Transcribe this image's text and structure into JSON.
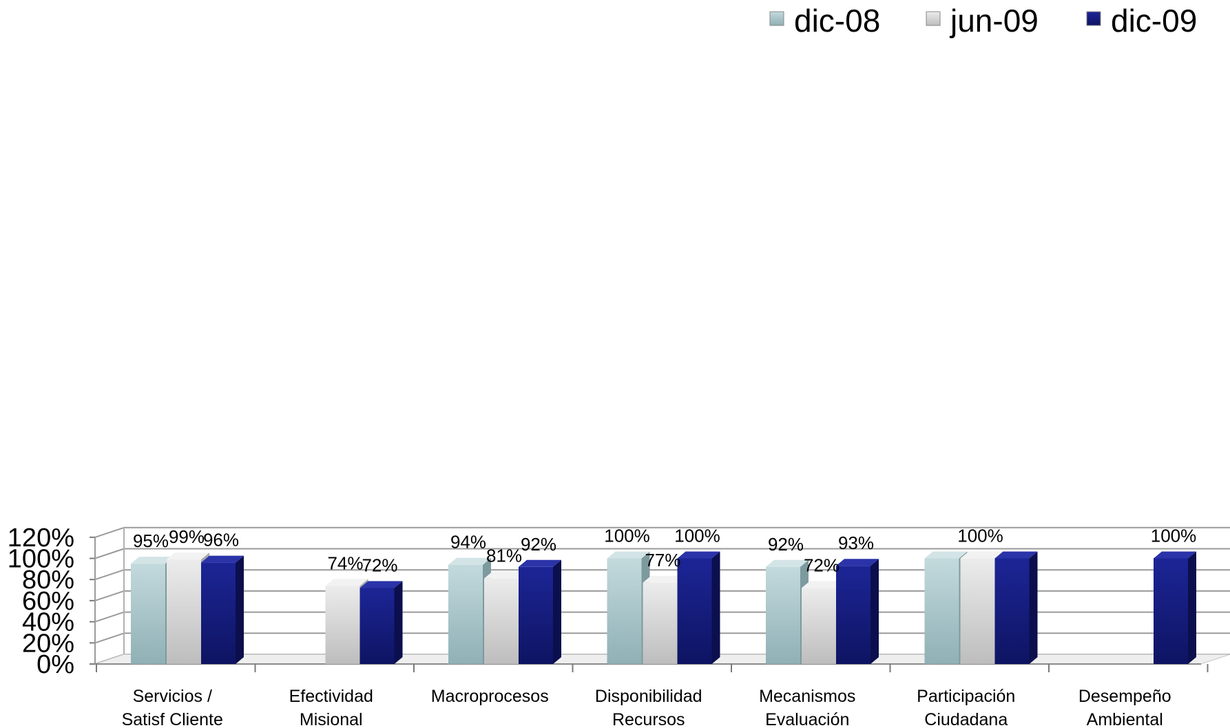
{
  "chart_data": {
    "type": "bar",
    "categories": [
      [
        "Servicios /",
        "Satisf Cliente"
      ],
      [
        "Efectividad",
        "Misional"
      ],
      [
        "Macroprocesos"
      ],
      [
        "Disponibilidad",
        "Recursos"
      ],
      [
        "Mecanismos",
        "Evaluación"
      ],
      [
        "Participación",
        "Ciudadana"
      ],
      [
        "Desempeño",
        "Ambiental"
      ]
    ],
    "series": [
      {
        "name": "dic-08",
        "color": "#a9c6ca",
        "values": [
          95,
          null,
          94,
          100,
          92,
          100,
          null
        ],
        "labels": [
          "95%",
          "",
          "94%",
          "100%",
          "92%",
          "",
          ""
        ]
      },
      {
        "name": "jun-09",
        "color": "#d6d6d6",
        "values": [
          99,
          74,
          81,
          77,
          72,
          100,
          null
        ],
        "labels": [
          "99%",
          "74%",
          "81%",
          "77%",
          "72%",
          "100%",
          ""
        ]
      },
      {
        "name": "dic-09",
        "color": "#141a80",
        "values": [
          96,
          72,
          92,
          100,
          93,
          100,
          100
        ],
        "labels": [
          "96%",
          "72%",
          "92%",
          "100%",
          "93%",
          "",
          "100%"
        ]
      }
    ],
    "y_ticks": [
      "0%",
      "20%",
      "40%",
      "60%",
      "80%",
      "100%",
      "120%"
    ],
    "ylim": [
      0,
      120
    ],
    "grid": true,
    "legend_position": "top-right",
    "style": "3d-clustered-column"
  }
}
